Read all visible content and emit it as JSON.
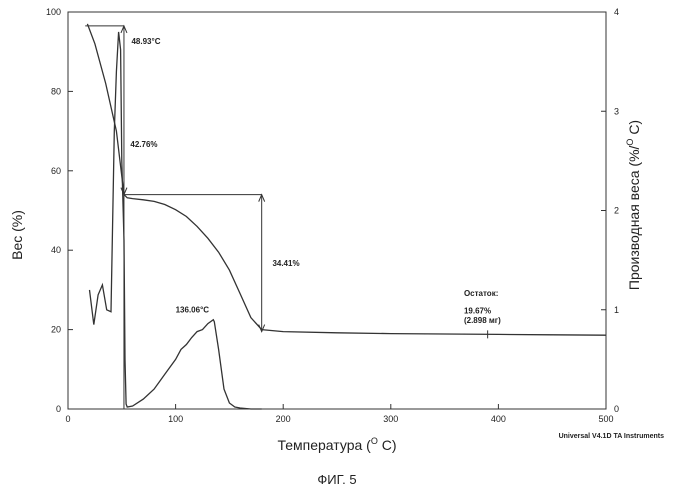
{
  "chart_data": {
    "type": "line",
    "x_label": "Температура (°C)",
    "x_label_parts": {
      "main": "Температура (",
      "sup": "O",
      "tail": " C)"
    },
    "y_left_label": "Вес  (%)",
    "y_right_label_parts": {
      "main": "Производная веса (%/",
      "sup": "O",
      "tail": " C)"
    },
    "xlim": [
      0,
      500
    ],
    "ylim_left": [
      0,
      100
    ],
    "ylim_right": [
      0,
      4
    ],
    "x_ticks": [
      "0",
      "100",
      "200",
      "300",
      "400",
      "500"
    ],
    "y_left_ticks": [
      "0",
      "20",
      "40",
      "60",
      "80",
      "100"
    ],
    "y_right_ticks": [
      "0",
      "1",
      "2",
      "3",
      "4"
    ],
    "series": [
      {
        "name": "Вес",
        "axis": "left",
        "x": [
          18,
          25,
          35,
          45,
          52,
          55,
          60,
          70,
          80,
          90,
          100,
          110,
          120,
          130,
          140,
          150,
          160,
          170,
          180,
          200,
          250,
          300,
          350,
          400,
          450,
          500
        ],
        "y": [
          97,
          92,
          82,
          70,
          54,
          53.2,
          53,
          52.7,
          52.3,
          51.5,
          50.2,
          48.5,
          46,
          43,
          39.5,
          35,
          29,
          23,
          20,
          19.5,
          19.2,
          19,
          18.9,
          18.8,
          18.7,
          18.6
        ]
      },
      {
        "name": "Производная веса",
        "axis": "right",
        "x": [
          20,
          24,
          28,
          32,
          36,
          40,
          43,
          45,
          47,
          48.9,
          50,
          52,
          53,
          54,
          55,
          60,
          70,
          80,
          90,
          100,
          105,
          110,
          115,
          120,
          125,
          130,
          135,
          136,
          140,
          145,
          150,
          155,
          160,
          170,
          180
        ],
        "y": [
          1.2,
          0.85,
          1.15,
          1.25,
          1.0,
          0.98,
          2.8,
          3.4,
          3.8,
          3.62,
          2.5,
          1.7,
          0.5,
          0.05,
          0.02,
          0.03,
          0.1,
          0.2,
          0.35,
          0.5,
          0.6,
          0.65,
          0.72,
          0.78,
          0.8,
          0.86,
          0.9,
          0.88,
          0.6,
          0.2,
          0.06,
          0.02,
          0.01,
          0.0,
          0.0
        ]
      }
    ],
    "annotations": [
      {
        "id": "peak1",
        "text": "48.93°C"
      },
      {
        "id": "loss1",
        "text": "42.76%"
      },
      {
        "id": "loss2",
        "text": "34.41%"
      },
      {
        "id": "peak2",
        "text": "136.06°C"
      },
      {
        "id": "residue_title",
        "text": "Остаток:"
      },
      {
        "id": "residue_pct",
        "text": "19.67%"
      },
      {
        "id": "residue_mg",
        "text": "(2.898 мг)"
      }
    ],
    "credit": "Universal V4.1D TA Instruments"
  },
  "caption": "ФИГ. 5"
}
